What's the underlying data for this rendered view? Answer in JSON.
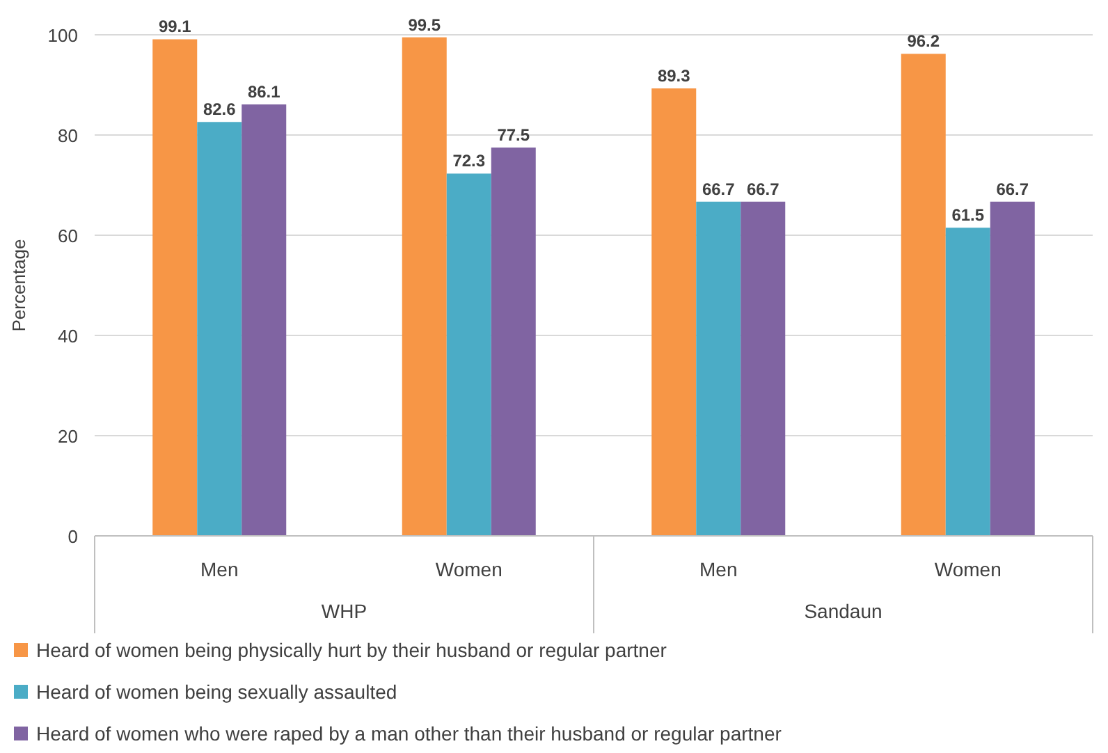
{
  "chart_data": {
    "type": "bar",
    "ylabel": "Percentage",
    "categories": [
      "Men",
      "Women",
      "Men",
      "Women"
    ],
    "series": [
      {
        "name": "Heard of women being physically hurt by their husband or regular partner",
        "color": "#f79646",
        "values": [
          99.1,
          99.5,
          89.3,
          96.2
        ]
      },
      {
        "name": "Heard of women being sexually assaulted",
        "color": "#4bacc6",
        "values": [
          82.6,
          72.3,
          66.7,
          61.5
        ]
      },
      {
        "name": "Heard of women who were raped by a man other than their husband or regular partner",
        "color": "#8064a2",
        "values": [
          86.1,
          77.5,
          66.7,
          66.7
        ]
      }
    ],
    "ylim": [
      0,
      100
    ],
    "yticks": [
      0,
      20,
      40,
      60,
      80,
      100
    ],
    "grid": "y",
    "data_labels": true,
    "legend": "bottom",
    "annotations": [
      "WHP",
      "Sandaun"
    ]
  }
}
